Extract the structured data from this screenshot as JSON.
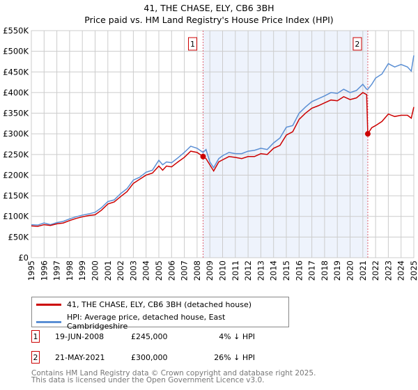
{
  "title": "41, THE CHASE, ELY, CB6 3BH",
  "subtitle": "Price paid vs. HM Land Registry's House Price Index (HPI)",
  "chart_data": {
    "type": "line",
    "xlim": [
      1995,
      2025
    ],
    "ylim": [
      0,
      550000
    ],
    "yticks": [
      0,
      50000,
      100000,
      150000,
      200000,
      250000,
      300000,
      350000,
      400000,
      450000,
      500000,
      550000
    ],
    "ytick_labels": [
      "£0",
      "£50K",
      "£100K",
      "£150K",
      "£200K",
      "£250K",
      "£300K",
      "£350K",
      "£400K",
      "£450K",
      "£500K",
      "£550K"
    ],
    "xticks": [
      "1995",
      "1996",
      "1997",
      "1998",
      "1999",
      "2000",
      "2001",
      "2002",
      "2003",
      "2004",
      "2005",
      "2006",
      "2007",
      "2008",
      "2009",
      "2010",
      "2011",
      "2012",
      "2013",
      "2014",
      "2015",
      "2016",
      "2017",
      "2018",
      "2019",
      "2020",
      "2021",
      "2022",
      "2023",
      "2024",
      "2025"
    ],
    "grid": true,
    "shaded_region": [
      2008.47,
      2021.39
    ],
    "colors": {
      "property": "#cc0000",
      "hpi": "#5b8fd4",
      "shade": "#eef3fc"
    },
    "series": [
      {
        "name": "41, THE CHASE, ELY, CB6 3BH (detached house)",
        "x": [
          1995,
          1995.5,
          1996,
          1996.5,
          1997,
          1997.5,
          1998,
          1998.5,
          1999,
          1999.5,
          2000,
          2000.5,
          2001,
          2001.5,
          2002,
          2002.5,
          2003,
          2003.5,
          2004,
          2004.5,
          2005,
          2005.3,
          2005.6,
          2006,
          2006.5,
          2007,
          2007.5,
          2008,
          2008.47,
          2008.7,
          2009,
          2009.3,
          2009.7,
          2010,
          2010.5,
          2011,
          2011.5,
          2012,
          2012.5,
          2013,
          2013.5,
          2014,
          2014.5,
          2015,
          2015.5,
          2016,
          2016.5,
          2017,
          2017.5,
          2018,
          2018.5,
          2019,
          2019.5,
          2020,
          2020.5,
          2021,
          2021.3,
          2021.39,
          2021.7,
          2022,
          2022.5,
          2023,
          2023.5,
          2024,
          2024.5,
          2024.8,
          2025
        ],
        "y": [
          77000,
          76000,
          80000,
          78000,
          82000,
          84000,
          90000,
          95000,
          99000,
          102000,
          104000,
          115000,
          130000,
          135000,
          148000,
          160000,
          180000,
          190000,
          200000,
          205000,
          222000,
          212000,
          222000,
          220000,
          232000,
          243000,
          258000,
          255000,
          245000,
          240000,
          225000,
          210000,
          232000,
          237000,
          245000,
          243000,
          240000,
          245000,
          245000,
          252000,
          250000,
          265000,
          272000,
          297000,
          305000,
          335000,
          350000,
          362000,
          368000,
          375000,
          382000,
          380000,
          390000,
          383000,
          387000,
          400000,
          395000,
          300000,
          315000,
          320000,
          330000,
          348000,
          342000,
          345000,
          345000,
          338000,
          365000
        ]
      },
      {
        "name": "HPI: Average price, detached house, East Cambridgeshire",
        "x": [
          1995,
          1995.5,
          1996,
          1996.5,
          1997,
          1997.5,
          1998,
          1998.5,
          1999,
          1999.5,
          2000,
          2000.5,
          2001,
          2001.5,
          2002,
          2002.5,
          2003,
          2003.5,
          2004,
          2004.5,
          2005,
          2005.3,
          2005.6,
          2006,
          2006.5,
          2007,
          2007.5,
          2008,
          2008.47,
          2008.7,
          2009,
          2009.3,
          2009.7,
          2010,
          2010.5,
          2011,
          2011.5,
          2012,
          2012.5,
          2013,
          2013.5,
          2014,
          2014.5,
          2015,
          2015.5,
          2016,
          2016.5,
          2017,
          2017.5,
          2018,
          2018.5,
          2019,
          2019.5,
          2020,
          2020.5,
          2021,
          2021.3,
          2021.39,
          2021.7,
          2022,
          2022.5,
          2023,
          2023.5,
          2024,
          2024.5,
          2024.8,
          2025
        ],
        "y": [
          80000,
          79000,
          84000,
          80000,
          85000,
          88000,
          94000,
          99000,
          103000,
          106000,
          110000,
          121000,
          136000,
          140000,
          155000,
          167000,
          188000,
          195000,
          207000,
          212000,
          236000,
          225000,
          232000,
          230000,
          242000,
          255000,
          270000,
          265000,
          255000,
          262000,
          232000,
          218000,
          240000,
          247000,
          255000,
          252000,
          252000,
          258000,
          260000,
          265000,
          262000,
          278000,
          290000,
          316000,
          320000,
          350000,
          365000,
          378000,
          385000,
          392000,
          400000,
          398000,
          408000,
          400000,
          405000,
          420000,
          408000,
          408000,
          420000,
          435000,
          445000,
          470000,
          462000,
          468000,
          462000,
          452000,
          490000
        ]
      }
    ],
    "sales": [
      {
        "label": "1",
        "x": 2008.47,
        "y": 245000
      },
      {
        "label": "2",
        "x": 2021.39,
        "y": 300000
      }
    ]
  },
  "legend": {
    "property": "41, THE CHASE, ELY, CB6 3BH (detached house)",
    "hpi": "HPI: Average price, detached house, East Cambridgeshire"
  },
  "transactions": [
    {
      "num": "1",
      "date": "19-JUN-2008",
      "price": "£245,000",
      "hpi": "4% ↓ HPI"
    },
    {
      "num": "2",
      "date": "21-MAY-2021",
      "price": "£300,000",
      "hpi": "26% ↓ HPI"
    }
  ],
  "footer": {
    "line1": "Contains HM Land Registry data © Crown copyright and database right 2025.",
    "line2": "This data is licensed under the Open Government Licence v3.0."
  }
}
